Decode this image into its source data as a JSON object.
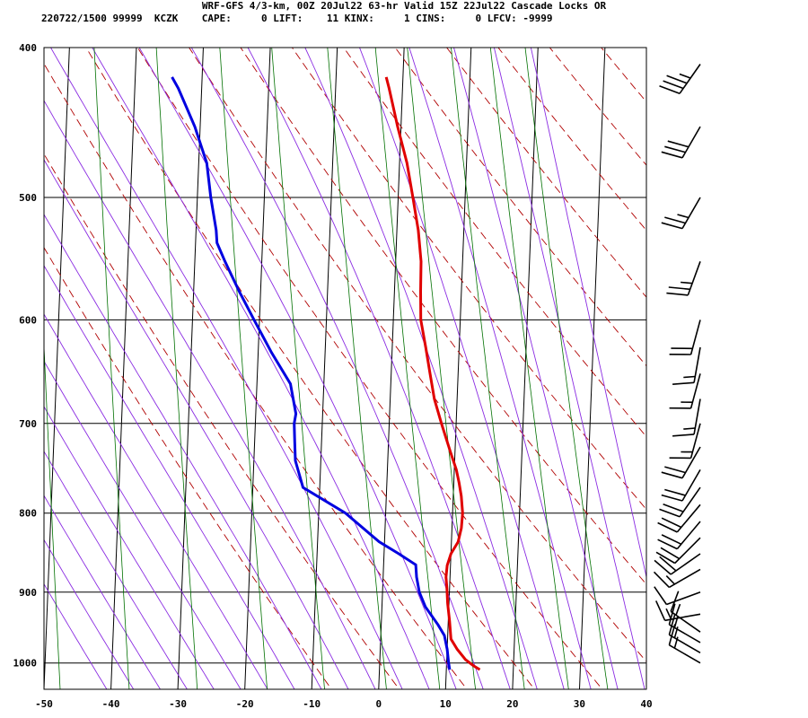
{
  "header": {
    "line1": "WRF-GFS 4/3-km, 00Z 20Jul22 63-hr Valid 15Z 22Jul22 Cascade Locks OR",
    "line2": "220722/1500 99999  KCZK    CAPE:     0 LIFT:    11 KINX:     1 CINS:     0 LFCV: -9999"
  },
  "colors": {
    "temperature": "#e00000",
    "dewpoint": "#0000e0",
    "dry_adiabat": "#b00000",
    "moist_adiabat": "#8a2be2",
    "mixing_ratio": "#007000",
    "grid": "#000000"
  },
  "chart_data": {
    "type": "line",
    "subtype": "skew-t log-p sounding",
    "xlabel": "",
    "ylabel": "",
    "x_ticks": [
      -50,
      -40,
      -30,
      -20,
      -10,
      0,
      10,
      20,
      30,
      40
    ],
    "xlim": [
      -50,
      40
    ],
    "pressure_ticks": [
      400,
      500,
      600,
      700,
      800,
      900,
      1000
    ],
    "ylim_pressure": [
      400,
      1040
    ],
    "y_scale": "log",
    "grid": true,
    "series": [
      {
        "key": "temperature",
        "points": [
          [
            1010,
            15.0
          ],
          [
            1004,
            14.0
          ],
          [
            995,
            12.8
          ],
          [
            980,
            11.5
          ],
          [
            965,
            10.5
          ],
          [
            940,
            10.2
          ],
          [
            915,
            9.8
          ],
          [
            895,
            9.6
          ],
          [
            880,
            9.4
          ],
          [
            865,
            9.5
          ],
          [
            850,
            10.0
          ],
          [
            835,
            11.0
          ],
          [
            818,
            11.4
          ],
          [
            800,
            11.5
          ],
          [
            780,
            11.2
          ],
          [
            765,
            10.8
          ],
          [
            750,
            10.3
          ],
          [
            730,
            9.3
          ],
          [
            700,
            7.8
          ],
          [
            675,
            6.6
          ],
          [
            650,
            5.8
          ],
          [
            625,
            5.0
          ],
          [
            600,
            4.1
          ],
          [
            575,
            3.9
          ],
          [
            550,
            3.8
          ],
          [
            525,
            3.2
          ],
          [
            500,
            2.2
          ],
          [
            475,
            1.1
          ],
          [
            450,
            -0.5
          ],
          [
            425,
            -2.0
          ],
          [
            418,
            -2.5
          ]
        ]
      },
      {
        "key": "dewpoint",
        "points": [
          [
            1010,
            10.5
          ],
          [
            1000,
            10.3
          ],
          [
            980,
            10.0
          ],
          [
            960,
            9.5
          ],
          [
            945,
            8.5
          ],
          [
            920,
            6.5
          ],
          [
            900,
            5.5
          ],
          [
            880,
            5.0
          ],
          [
            864,
            4.8
          ],
          [
            850,
            2.2
          ],
          [
            835,
            -0.8
          ],
          [
            800,
            -6.0
          ],
          [
            770,
            -12.5
          ],
          [
            740,
            -13.8
          ],
          [
            720,
            -14.0
          ],
          [
            700,
            -14.2
          ],
          [
            690,
            -14.0
          ],
          [
            660,
            -15.0
          ],
          [
            630,
            -18.0
          ],
          [
            600,
            -20.8
          ],
          [
            575,
            -23.2
          ],
          [
            550,
            -25.5
          ],
          [
            535,
            -26.8
          ],
          [
            525,
            -27.0
          ],
          [
            500,
            -28.0
          ],
          [
            475,
            -28.8
          ],
          [
            450,
            -30.8
          ],
          [
            425,
            -33.5
          ],
          [
            418,
            -34.5
          ]
        ]
      }
    ],
    "wind_barbs": [
      {
        "p": 1000,
        "dir": 300,
        "kt": 15
      },
      {
        "p": 985,
        "dir": 300,
        "kt": 15
      },
      {
        "p": 970,
        "dir": 300,
        "kt": 15
      },
      {
        "p": 955,
        "dir": 305,
        "kt": 15
      },
      {
        "p": 930,
        "dir": 260,
        "kt": 15
      },
      {
        "p": 900,
        "dir": 250,
        "kt": 10
      },
      {
        "p": 870,
        "dir": 240,
        "kt": 15
      },
      {
        "p": 850,
        "dir": 235,
        "kt": 20
      },
      {
        "p": 830,
        "dir": 225,
        "kt": 20
      },
      {
        "p": 810,
        "dir": 220,
        "kt": 20
      },
      {
        "p": 790,
        "dir": 220,
        "kt": 20
      },
      {
        "p": 770,
        "dir": 215,
        "kt": 20
      },
      {
        "p": 750,
        "dir": 210,
        "kt": 20
      },
      {
        "p": 725,
        "dir": 210,
        "kt": 20
      },
      {
        "p": 700,
        "dir": 195,
        "kt": 15
      },
      {
        "p": 675,
        "dir": 190,
        "kt": 15
      },
      {
        "p": 650,
        "dir": 195,
        "kt": 15
      },
      {
        "p": 625,
        "dir": 190,
        "kt": 15
      },
      {
        "p": 600,
        "dir": 195,
        "kt": 20
      },
      {
        "p": 550,
        "dir": 200,
        "kt": 25
      },
      {
        "p": 500,
        "dir": 210,
        "kt": 25
      },
      {
        "p": 450,
        "dir": 210,
        "kt": 30
      },
      {
        "p": 410,
        "dir": 215,
        "kt": 35
      }
    ]
  }
}
